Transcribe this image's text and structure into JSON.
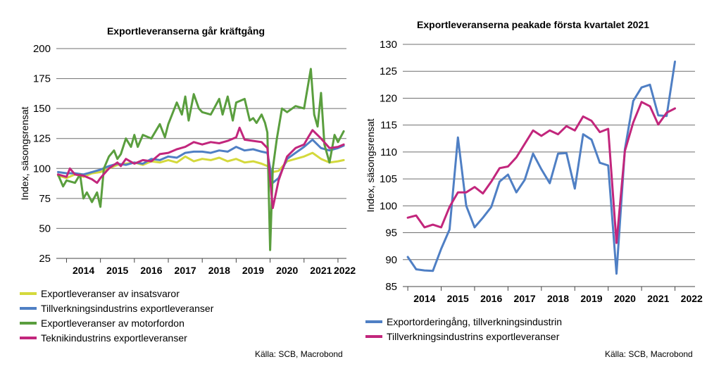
{
  "chart_data": [
    {
      "type": "line",
      "title": "Exportleveranserna går kräftgång",
      "ylabel": "Index, säsongsrensat",
      "ylim": [
        25,
        200
      ],
      "yticks": [
        25,
        50,
        75,
        100,
        125,
        150,
        175,
        200
      ],
      "xlim": [
        2013.7,
        2022.25
      ],
      "xticks": [
        "2014",
        "2015",
        "2016",
        "2017",
        "2018",
        "2019",
        "2020",
        "2021",
        "2022"
      ],
      "grid": "horizontal",
      "legend_position": "bottom",
      "source": "Källa: SCB, Macrobond",
      "series": [
        {
          "name": "Exportleveranser av insatsvaror",
          "color": "#d4d93c",
          "x": [
            2013.75,
            2014.0,
            2014.25,
            2014.5,
            2014.75,
            2015.0,
            2015.25,
            2015.5,
            2015.75,
            2016.0,
            2016.25,
            2016.5,
            2016.75,
            2017.0,
            2017.25,
            2017.5,
            2017.75,
            2018.0,
            2018.25,
            2018.5,
            2018.75,
            2019.0,
            2019.25,
            2019.5,
            2019.75,
            2019.92,
            2020.08,
            2020.25,
            2020.5,
            2020.75,
            2021.0,
            2021.25,
            2021.5,
            2021.75,
            2022.0,
            2022.17
          ],
          "values": [
            94,
            92,
            95,
            93,
            96,
            97,
            100,
            103,
            104,
            105,
            103,
            106,
            105,
            107,
            105,
            110,
            106,
            108,
            107,
            109,
            106,
            108,
            105,
            106,
            104,
            102,
            97,
            98,
            106,
            108,
            110,
            113,
            108,
            105,
            106,
            107
          ]
        },
        {
          "name": "Tillverkningsindustrins exportleveranser",
          "color": "#4f7fc4",
          "x": [
            2013.75,
            2014.0,
            2014.25,
            2014.5,
            2014.75,
            2015.0,
            2015.25,
            2015.5,
            2015.75,
            2016.0,
            2016.25,
            2016.5,
            2016.75,
            2017.0,
            2017.25,
            2017.5,
            2017.75,
            2018.0,
            2018.25,
            2018.5,
            2018.75,
            2019.0,
            2019.25,
            2019.5,
            2019.75,
            2019.92,
            2020.08,
            2020.25,
            2020.5,
            2020.75,
            2021.0,
            2021.25,
            2021.5,
            2021.75,
            2022.0,
            2022.17
          ],
          "values": [
            97,
            96,
            96,
            95,
            97,
            99,
            102,
            104,
            103,
            105,
            104,
            108,
            107,
            110,
            109,
            113,
            114,
            114,
            113,
            115,
            114,
            118,
            115,
            116,
            114,
            113,
            88,
            92,
            108,
            113,
            118,
            124,
            117,
            115,
            117,
            119
          ]
        },
        {
          "name": "Exportleveranser av motorfordon",
          "color": "#5a9e3e",
          "x": [
            2013.75,
            2013.9,
            2014.0,
            2014.25,
            2014.4,
            2014.5,
            2014.6,
            2014.75,
            2014.9,
            2015.0,
            2015.1,
            2015.25,
            2015.4,
            2015.5,
            2015.6,
            2015.75,
            2015.9,
            2016.0,
            2016.1,
            2016.25,
            2016.5,
            2016.75,
            2016.9,
            2017.0,
            2017.25,
            2017.4,
            2017.5,
            2017.6,
            2017.75,
            2017.9,
            2018.0,
            2018.25,
            2018.5,
            2018.6,
            2018.75,
            2018.9,
            2019.0,
            2019.25,
            2019.4,
            2019.5,
            2019.6,
            2019.75,
            2019.85,
            2019.92,
            2020.0,
            2020.08,
            2020.2,
            2020.35,
            2020.5,
            2020.75,
            2021.0,
            2021.2,
            2021.3,
            2021.4,
            2021.5,
            2021.6,
            2021.75,
            2021.9,
            2022.0,
            2022.17
          ],
          "values": [
            95,
            85,
            90,
            88,
            95,
            75,
            80,
            72,
            80,
            68,
            100,
            110,
            115,
            108,
            112,
            125,
            118,
            128,
            118,
            128,
            125,
            137,
            126,
            137,
            155,
            145,
            160,
            140,
            162,
            150,
            147,
            145,
            158,
            145,
            160,
            140,
            155,
            158,
            140,
            142,
            138,
            145,
            138,
            130,
            32,
            100,
            125,
            150,
            147,
            152,
            150,
            183,
            145,
            135,
            163,
            120,
            105,
            128,
            122,
            131
          ]
        },
        {
          "name": "Teknikindustrins exportleveranser",
          "color": "#c2267c",
          "x": [
            2013.75,
            2014.0,
            2014.1,
            2014.25,
            2014.5,
            2014.75,
            2014.9,
            2015.0,
            2015.25,
            2015.5,
            2015.6,
            2015.75,
            2016.0,
            2016.25,
            2016.5,
            2016.75,
            2017.0,
            2017.25,
            2017.5,
            2017.75,
            2018.0,
            2018.25,
            2018.5,
            2018.75,
            2019.0,
            2019.1,
            2019.25,
            2019.5,
            2019.75,
            2019.92,
            2020.08,
            2020.25,
            2020.5,
            2020.75,
            2021.0,
            2021.1,
            2021.25,
            2021.5,
            2021.75,
            2022.0,
            2022.17
          ],
          "values": [
            95,
            93,
            100,
            95,
            94,
            91,
            88,
            92,
            100,
            105,
            102,
            108,
            104,
            107,
            106,
            112,
            113,
            116,
            118,
            122,
            120,
            122,
            121,
            123,
            126,
            134,
            124,
            123,
            122,
            117,
            67,
            90,
            110,
            117,
            120,
            125,
            132,
            125,
            117,
            118,
            120
          ]
        }
      ]
    },
    {
      "type": "line",
      "title": "Exportleveranserna peakade första kvartalet 2021",
      "ylabel": "Index, säsongsrensat",
      "ylim": [
        85,
        130
      ],
      "yticks": [
        85,
        90,
        95,
        100,
        105,
        110,
        115,
        120,
        125,
        130
      ],
      "xlim": [
        2013.85,
        2022.6
      ],
      "xticks": [
        "2014",
        "2015",
        "2016",
        "2017",
        "2018",
        "2019",
        "2020",
        "2021",
        "2022"
      ],
      "grid": "horizontal",
      "legend_position": "bottom",
      "source": "Källa: SCB, Macrobond",
      "series": [
        {
          "name": "Exportorderingång, tillverkningsindustrin",
          "color": "#4f7fc4",
          "x": [
            2014.0,
            2014.25,
            2014.5,
            2014.75,
            2015.0,
            2015.25,
            2015.5,
            2015.75,
            2016.0,
            2016.25,
            2016.5,
            2016.75,
            2017.0,
            2017.25,
            2017.5,
            2017.75,
            2018.0,
            2018.25,
            2018.5,
            2018.75,
            2019.0,
            2019.25,
            2019.5,
            2019.75,
            2020.0,
            2020.25,
            2020.5,
            2020.75,
            2021.0,
            2021.25,
            2021.5,
            2021.75,
            2022.0
          ],
          "values": [
            90.5,
            88.2,
            88.0,
            87.9,
            92.0,
            95.6,
            112.7,
            100.0,
            96.0,
            97.8,
            99.8,
            104.5,
            105.8,
            102.5,
            104.8,
            109.7,
            106.8,
            104.2,
            109.7,
            109.8,
            103.2,
            113.3,
            112.3,
            108.0,
            107.5,
            87.4,
            110.5,
            119.5,
            122.0,
            122.5,
            116.8,
            116.7,
            126.8
          ]
        },
        {
          "name": "Tillverkningsindustrins exportleveranser",
          "color": "#c2267c",
          "x": [
            2014.0,
            2014.25,
            2014.5,
            2014.75,
            2015.0,
            2015.25,
            2015.5,
            2015.75,
            2016.0,
            2016.25,
            2016.5,
            2016.75,
            2017.0,
            2017.25,
            2017.5,
            2017.75,
            2018.0,
            2018.25,
            2018.5,
            2018.75,
            2019.0,
            2019.25,
            2019.5,
            2019.75,
            2020.0,
            2020.25,
            2020.5,
            2020.75,
            2021.0,
            2021.25,
            2021.5,
            2021.75,
            2022.0
          ],
          "values": [
            97.8,
            98.2,
            96.0,
            96.5,
            96.0,
            99.8,
            102.5,
            102.5,
            103.5,
            102.3,
            104.5,
            107.0,
            107.3,
            109.0,
            111.5,
            114.0,
            113.0,
            114.0,
            113.3,
            114.8,
            114.0,
            116.6,
            115.8,
            113.7,
            114.3,
            93.1,
            110.2,
            115.5,
            119.3,
            118.5,
            115.1,
            117.3,
            118.1
          ]
        }
      ]
    }
  ]
}
